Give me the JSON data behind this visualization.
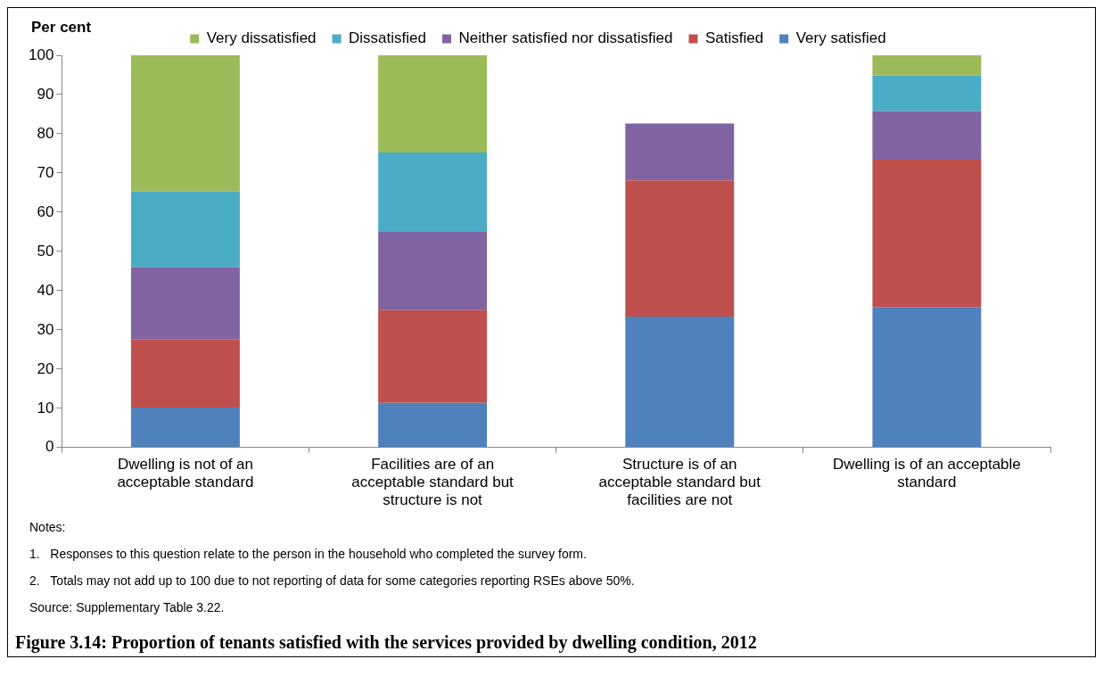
{
  "chart_data": {
    "type": "bar",
    "title": "Figure 3.14: Proportion of tenants satisfied with the services provided by dwelling condition, 2012",
    "ylabel": "Per cent",
    "categories": [
      "Dwelling is not of an acceptable standard",
      "Facilities are of an acceptable standard but structure is not",
      "Structure is of an acceptable standard but facilities are not",
      "Dwelling is of an acceptable standard"
    ],
    "stacked": true,
    "grid": false,
    "legend": "top",
    "ylim": [
      0,
      100
    ],
    "yticks": [
      0,
      10,
      20,
      30,
      40,
      50,
      60,
      70,
      80,
      90,
      100
    ],
    "series": [
      {
        "name": "Very satisfied",
        "color": "#4f81bd",
        "values": [
          10.2,
          11.4,
          33.4,
          35.8
        ]
      },
      {
        "name": "Satisfied",
        "color": "#c0504d",
        "values": [
          17.3,
          23.6,
          34.7,
          37.6
        ]
      },
      {
        "name": "Neither satisfied nor dissatisfied",
        "color": "#8064a2",
        "values": [
          18.5,
          20.0,
          14.5,
          12.4
        ]
      },
      {
        "name": "Dissatisfied",
        "color": "#4bacc6",
        "values": [
          19.3,
          20.2,
          null,
          9.0
        ]
      },
      {
        "name": "Very dissatisfied",
        "color": "#9bbb59",
        "values": [
          34.7,
          24.8,
          null,
          5.2
        ]
      }
    ],
    "annotations": [
      "Notes:",
      "1.\tResponses to this question relate to the person in the household who completed the survey form.",
      "2.\tTotals may not add up to 100 due to not reporting of data for some categories reporting RSEs above 50%.",
      "Source: Supplementary Table 3.22."
    ]
  }
}
